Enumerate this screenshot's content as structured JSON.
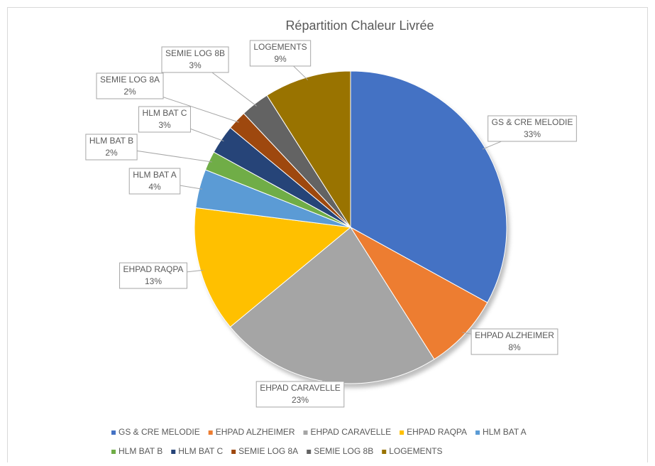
{
  "chart_data": {
    "type": "pie",
    "title": "Répartition Chaleur Livrée",
    "categories": [
      "GS & CRE MELODIE",
      "EHPAD ALZHEIMER",
      "EHPAD CARAVELLE",
      "EHPAD RAQPA",
      "HLM BAT A",
      "HLM BAT B",
      "HLM BAT C",
      "SEMIE LOG 8A",
      "SEMIE LOG 8B",
      "LOGEMENTS"
    ],
    "values": [
      33,
      8,
      23,
      13,
      4,
      2,
      3,
      2,
      3,
      9
    ],
    "value_labels": [
      "33%",
      "8%",
      "23%",
      "13%",
      "4%",
      "2%",
      "3%",
      "2%",
      "3%",
      "9%"
    ],
    "colors": [
      "#4472c4",
      "#ed7d31",
      "#a5a5a5",
      "#ffc000",
      "#5b9bd5",
      "#70ad47",
      "#264478",
      "#9e480e",
      "#636363",
      "#997300"
    ],
    "legend": "bottom"
  }
}
